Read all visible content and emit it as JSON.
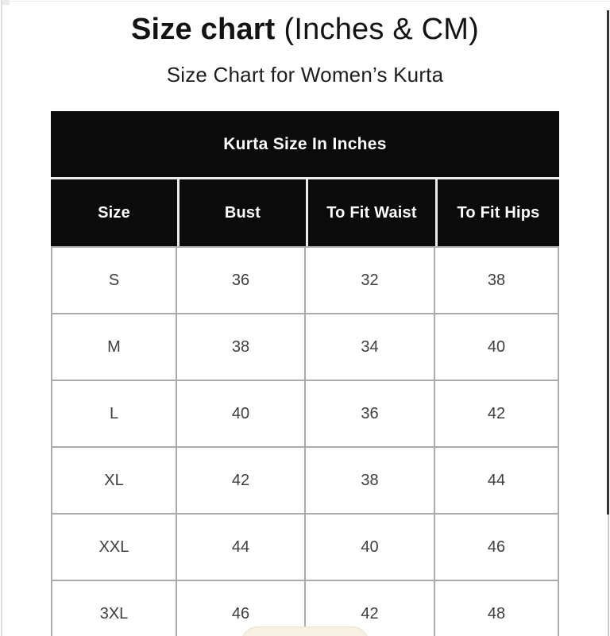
{
  "header": {
    "title_bold": "Size chart",
    "title_suffix": "(Inches & CM)",
    "subtitle": "Size Chart for Women’s Kurta"
  },
  "table": {
    "title": "Kurta Size In Inches",
    "columns": [
      "Size",
      "Bust",
      "To Fit Waist",
      "To Fit Hips"
    ],
    "rows": [
      [
        "S",
        "36",
        "32",
        "38"
      ],
      [
        "M",
        "38",
        "34",
        "40"
      ],
      [
        "L",
        "40",
        "36",
        "42"
      ],
      [
        "XL",
        "42",
        "38",
        "44"
      ],
      [
        "XXL",
        "44",
        "40",
        "46"
      ],
      [
        "3XL",
        "46",
        "42",
        "48"
      ]
    ]
  },
  "colors": {
    "table_header_bg": "#0B0B0B",
    "table_header_text": "#FFFFFF",
    "body_text": "#3E3E3E",
    "grid_line": "#ABABAB",
    "page_bg": "#FFFFFF",
    "bottom_pill_bg": "#F8F2E6"
  }
}
